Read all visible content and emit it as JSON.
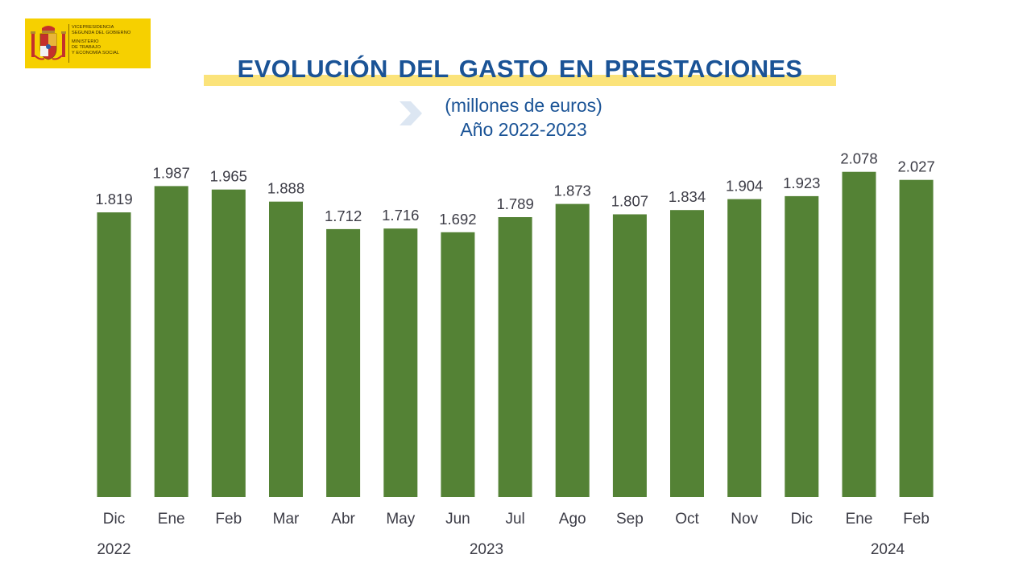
{
  "logo": {
    "lines": [
      "VICEPRESIDENCIA",
      "SEGUNDA DEL GOBIERNO",
      "MINISTERIO",
      "DE TRABAJO",
      "Y ECONOMÍA SOCIAL"
    ],
    "background_color": "#f6d000",
    "emblem_icon": "coat-of-arms-of-spain"
  },
  "header": {
    "title": "EVOLUCIÓN DEL GASTO EN PRESTACIONES",
    "subtitle": "(millones de euros)",
    "year_range": "Año 2022-2023",
    "arrow_icon": "chevron-right-icon"
  },
  "chart_data": {
    "type": "bar",
    "categories": [
      "Dic",
      "Ene",
      "Feb",
      "Mar",
      "Abr",
      "May",
      "Jun",
      "Jul",
      "Ago",
      "Sep",
      "Oct",
      "Nov",
      "Dic",
      "Ene",
      "Feb"
    ],
    "values": [
      1819,
      1987,
      1965,
      1888,
      1712,
      1716,
      1692,
      1789,
      1873,
      1807,
      1834,
      1904,
      1923,
      2078,
      2027
    ],
    "value_labels": [
      "1.819",
      "1.987",
      "1.965",
      "1.888",
      "1.712",
      "1.716",
      "1.692",
      "1.789",
      "1.873",
      "1.807",
      "1.834",
      "1.904",
      "1.923",
      "2.078",
      "2.027"
    ],
    "year_groups": [
      {
        "label": "2022",
        "from": 0,
        "to": 0
      },
      {
        "label": "2023",
        "from": 1,
        "to": 12
      },
      {
        "label": "2024",
        "from": 13,
        "to": 14
      }
    ],
    "ylim": [
      0,
      2200
    ],
    "grid": false,
    "bar_color": "#548235",
    "title": "",
    "xlabel": "",
    "ylabel": ""
  }
}
